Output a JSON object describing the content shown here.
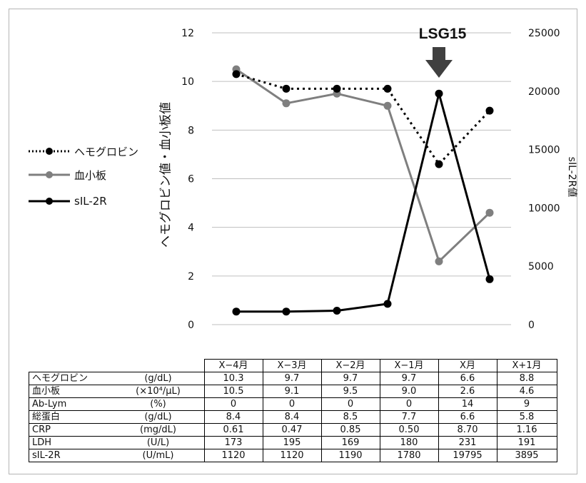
{
  "chart_data": {
    "type": "line",
    "categories": [
      "X−4月",
      "X−3月",
      "X−2月",
      "X−1月",
      "X月",
      "X+1月"
    ],
    "left_axis": {
      "label": "ヘモグロビン値・血小板値",
      "range": [
        0,
        12
      ],
      "ticks": [
        "0",
        "2",
        "4",
        "6",
        "8",
        "10",
        "12"
      ]
    },
    "right_axis": {
      "label": "sIL-2R値",
      "range": [
        0,
        25000
      ],
      "ticks": [
        "0",
        "5000",
        "10000",
        "15000",
        "20000",
        "25000"
      ]
    },
    "grid": true,
    "legend_position": "left",
    "series": [
      {
        "name": "ヘモグロビン",
        "axis": "left",
        "style": "dotted",
        "color": "#000000",
        "values": [
          10.3,
          9.7,
          9.7,
          9.7,
          6.6,
          8.8
        ]
      },
      {
        "name": "血小板",
        "axis": "left",
        "style": "solid",
        "color": "#7f7f7f",
        "values": [
          10.5,
          9.1,
          9.5,
          9.0,
          2.6,
          4.6
        ]
      },
      {
        "name": "sIL-2R",
        "axis": "right",
        "style": "solid",
        "color": "#000000",
        "values": [
          1120,
          1120,
          1190,
          1780,
          19795,
          3895
        ]
      }
    ],
    "annotation": {
      "text": "LSG15",
      "category": "X月"
    }
  },
  "table": {
    "headers": [
      "X−4月",
      "X−3月",
      "X−2月",
      "X−1月",
      "X月",
      "X+1月"
    ],
    "rows": [
      {
        "label": "ヘモグロビン",
        "unit": "(g/dL)",
        "values": [
          "10.3",
          "9.7",
          "9.7",
          "9.7",
          "6.6",
          "8.8"
        ]
      },
      {
        "label": "血小板",
        "unit": "(×10⁴/μL)",
        "values": [
          "10.5",
          "9.1",
          "9.5",
          "9.0",
          "2.6",
          "4.6"
        ]
      },
      {
        "label": "Ab-Lym",
        "unit": "(%)",
        "values": [
          "0",
          "0",
          "0",
          "0",
          "14",
          "9"
        ]
      },
      {
        "label": "総蛋白",
        "unit": "(g/dL)",
        "values": [
          "8.4",
          "8.4",
          "8.5",
          "7.7",
          "6.6",
          "5.8"
        ]
      },
      {
        "label": "CRP",
        "unit": "(mg/dL)",
        "values": [
          "0.61",
          "0.47",
          "0.85",
          "0.50",
          "8.70",
          "1.16"
        ]
      },
      {
        "label": "LDH",
        "unit": "(U/L)",
        "values": [
          "173",
          "195",
          "169",
          "180",
          "231",
          "191"
        ]
      },
      {
        "label": "sIL-2R",
        "unit": "(U/mL)",
        "values": [
          "1120",
          "1120",
          "1190",
          "1780",
          "19795",
          "3895"
        ]
      }
    ]
  }
}
